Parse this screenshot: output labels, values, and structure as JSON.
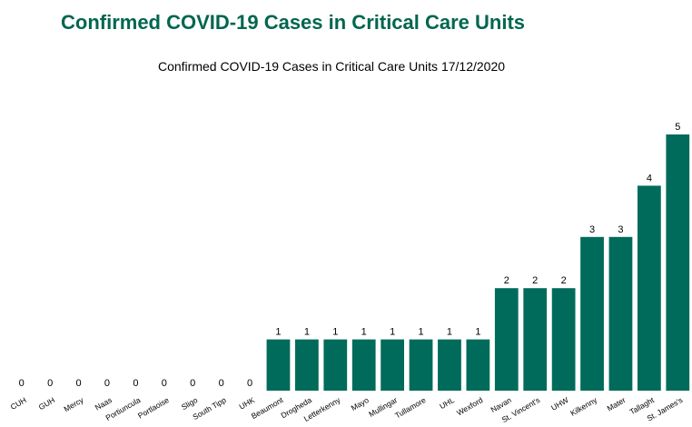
{
  "header": {
    "title": "Confirmed COVID-19 Cases in Critical Care Units"
  },
  "chart_data": {
    "type": "bar",
    "title": "Confirmed COVID-19 Cases in Critical Care Units 17/12/2020",
    "categories": [
      "CUH",
      "GUH",
      "Mercy",
      "Naas",
      "Portiuncula",
      "Portlaoise",
      "Sligo",
      "South Tipp",
      "UHK",
      "Beaumont",
      "Drogheda",
      "Letterkenny",
      "Mayo",
      "Mullingar",
      "Tullamore",
      "UHL",
      "Wexford",
      "Navan",
      "St. Vincent's",
      "UHW",
      "Kilkenny",
      "Mater",
      "Tallaght",
      "St. James's"
    ],
    "values": [
      0,
      0,
      0,
      0,
      0,
      0,
      0,
      0,
      0,
      1,
      1,
      1,
      1,
      1,
      1,
      1,
      1,
      2,
      2,
      2,
      3,
      3,
      4,
      5
    ],
    "color": "#006b5a",
    "ylim": [
      0,
      5
    ]
  }
}
